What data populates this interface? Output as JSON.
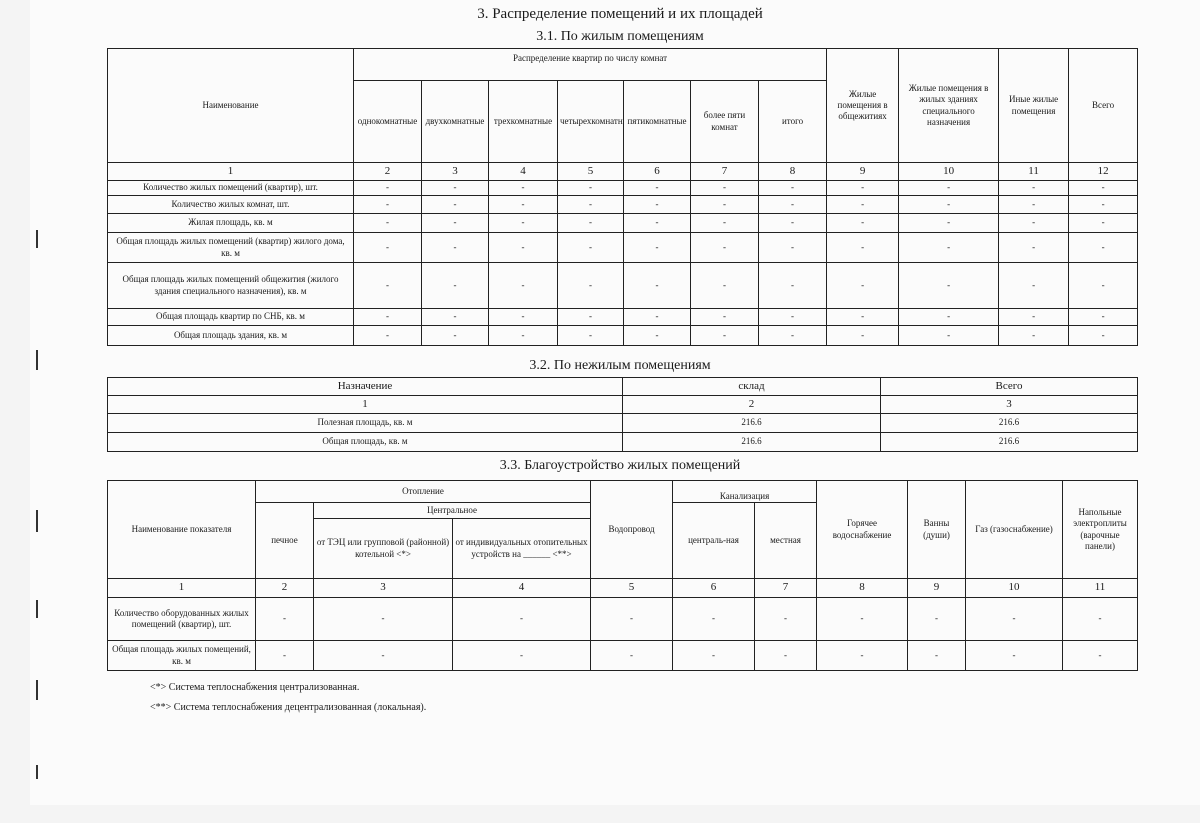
{
  "title": "3. Распределение помещений и их площадей",
  "section_31": {
    "title": "3.1. По жилым помещениям",
    "name_header": "Наименование",
    "group_header": "Распределение квартир по числу комнат",
    "room_columns": [
      "однокомнатные",
      "двухкомнатные",
      "трехкомнатные",
      "четырехкомнатные",
      "пятикомнатные",
      "более пяти комнат",
      "итого"
    ],
    "other_columns": [
      "Жилые помещения в общежитиях",
      "Жилые помещения в жилых зданиях специального назначения",
      "Иные жилые помещения",
      "Всего"
    ],
    "column_numbers": [
      "1",
      "2",
      "3",
      "4",
      "5",
      "6",
      "7",
      "8",
      "9",
      "10",
      "11",
      "12"
    ],
    "rows": [
      {
        "label": "Количество жилых помещений (квартир), шт.",
        "values": [
          "-",
          "-",
          "-",
          "-",
          "-",
          "-",
          "-",
          "-",
          "-",
          "-",
          "-"
        ]
      },
      {
        "label": "Количество жилых комнат, шт.",
        "values": [
          "-",
          "-",
          "-",
          "-",
          "-",
          "-",
          "-",
          "-",
          "-",
          "-",
          "-"
        ]
      },
      {
        "label": "Жилая площадь, кв. м",
        "values": [
          "-",
          "-",
          "-",
          "-",
          "-",
          "-",
          "-",
          "-",
          "-",
          "-",
          "-"
        ]
      },
      {
        "label": "Общая площадь жилых помещений (квартир) жилого дома, кв. м",
        "values": [
          "-",
          "-",
          "-",
          "-",
          "-",
          "-",
          "-",
          "-",
          "-",
          "-",
          "-"
        ]
      },
      {
        "label": "Общая площадь жилых помещений общежития (жилого здания специального назначения), кв. м",
        "values": [
          "-",
          "-",
          "-",
          "-",
          "-",
          "-",
          "-",
          "-",
          "-",
          "-",
          "-"
        ]
      },
      {
        "label": "Общая площадь квартир по СНБ, кв. м",
        "values": [
          "-",
          "-",
          "-",
          "-",
          "-",
          "-",
          "-",
          "-",
          "-",
          "-",
          "-"
        ]
      },
      {
        "label": "Общая площадь здания, кв. м",
        "values": [
          "-",
          "-",
          "-",
          "-",
          "-",
          "-",
          "-",
          "-",
          "-",
          "-",
          "-"
        ]
      }
    ]
  },
  "section_32": {
    "title": "3.2. По нежилым помещениям",
    "headers": [
      "Назначение",
      "склад",
      "Всего"
    ],
    "column_numbers": [
      "1",
      "2",
      "3"
    ],
    "rows": [
      {
        "label": "Полезная площадь, кв. м",
        "values": [
          "216.6",
          "216.6"
        ]
      },
      {
        "label": "Общая площадь, кв. м",
        "values": [
          "216.6",
          "216.6"
        ]
      }
    ]
  },
  "section_33": {
    "title": "3.3. Благоустройство жилых помещений",
    "name_header": "Наименование показателя",
    "heating": "Отопление",
    "stove": "печное",
    "central": "Центральное",
    "from_chp": "от ТЭЦ или групповой (районной) котельной <*>",
    "from_individual": "от индивидуальных отопительных устройств на ______ <**>",
    "water": "Водопровод",
    "sewerage": "Канализация",
    "sewer_central": "централь-ная",
    "sewer_local": "местная",
    "hot_water": "Горячее водоснабжение",
    "baths": "Ванны (души)",
    "gas": "Газ (газоснабжение)",
    "stoves": "Напольные электроплиты (варочные панели)",
    "column_numbers": [
      "1",
      "2",
      "3",
      "4",
      "5",
      "6",
      "7",
      "8",
      "9",
      "10",
      "11"
    ],
    "rows": [
      {
        "label": "Количество оборудованных жилых помещений (квартир), шт.",
        "values": [
          "-",
          "-",
          "-",
          "-",
          "-",
          "-",
          "-",
          "-",
          "-",
          "-"
        ]
      },
      {
        "label": "Общая площадь жилых помещений, кв. м",
        "values": [
          "-",
          "-",
          "-",
          "-",
          "-",
          "-",
          "-",
          "-",
          "-",
          "-"
        ]
      }
    ]
  },
  "footnotes": [
    "<*> Система теплоснабжения централизованная.",
    "<**> Система теплоснабжения децентрализованная (локальная)."
  ]
}
